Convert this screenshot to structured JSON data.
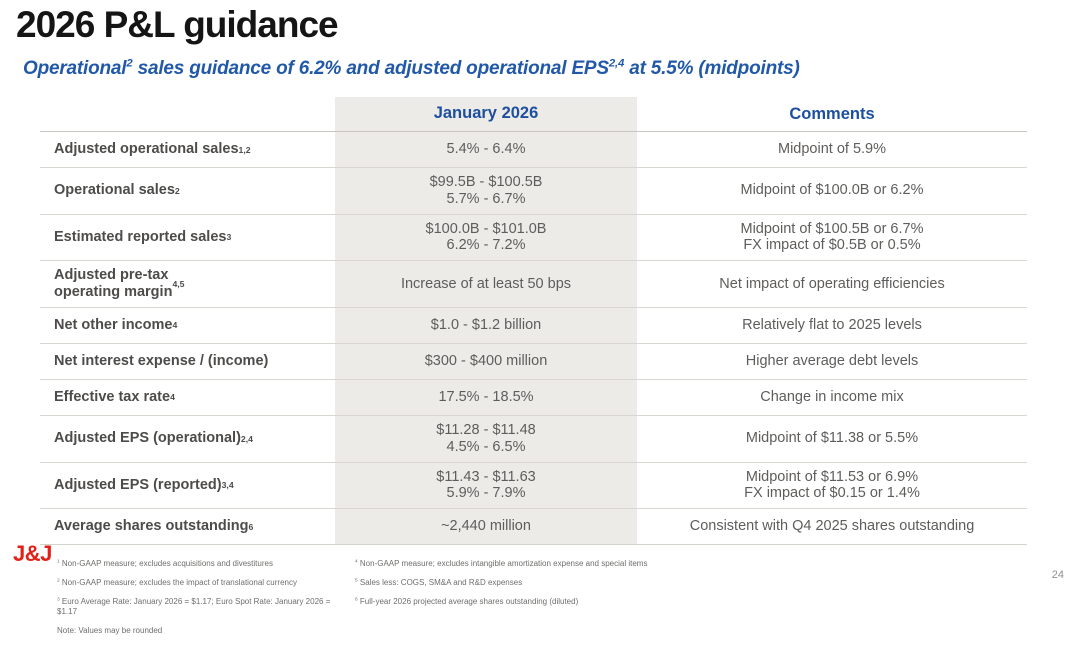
{
  "slide": {
    "title": "2026 P&L guidance",
    "subtitle": "Operational^{2} sales guidance of 6.2% and adjusted operational EPS^{2,4} at 5.5% (midpoints)",
    "logo_text": "J&J",
    "page_number": "24"
  },
  "colors": {
    "heading_blue": "#1c4f9f",
    "subtitle_blue": "#2159a8",
    "logo_red": "#e32119",
    "column_shade": "#edebe7",
    "row_divider": "#d9d6d1"
  },
  "table": {
    "header": {
      "metric": "",
      "january": "January 2026",
      "comments": "Comments"
    },
    "rows": [
      {
        "label": "Adjusted operational sales^{1,2}",
        "value": "5.4% - 6.4%",
        "comment": "Midpoint of 5.9%"
      },
      {
        "label": "Operational sales^{2}",
        "value": "$99.5B - $100.5B\n5.7% - 6.7%",
        "comment": "Midpoint of $100.0B or 6.2%"
      },
      {
        "label": "Estimated reported sales ^{3}",
        "value": "$100.0B - $101.0B\n6.2% - 7.2%",
        "comment": "Midpoint of $100.5B or 6.7%\nFX impact of $0.5B or 0.5%"
      },
      {
        "label": "Adjusted pre-tax\noperating margin^{4,5}",
        "value": "Increase of at least 50 bps",
        "comment": "Net impact of operating efficiencies"
      },
      {
        "label": "Net other income^{4}",
        "value": "$1.0 - $1.2 billion",
        "comment": "Relatively flat to 2025 levels"
      },
      {
        "label": "Net interest expense / (income)",
        "value": "$300 - $400 million",
        "comment": "Higher average debt levels"
      },
      {
        "label": "Effective tax rate^{4}",
        "value": "17.5% - 18.5%",
        "comment": "Change in income mix"
      },
      {
        "label": "Adjusted EPS (operational)^{2,4}",
        "value": "$11.28 - $11.48\n4.5% - 6.5%",
        "comment": "Midpoint of $11.38 or 5.5%"
      },
      {
        "label": "Adjusted EPS (reported)^{3,4}",
        "value": "$11.43 - $11.63\n5.9% - 7.9%",
        "comment": "Midpoint of $11.53 or 6.9%\nFX impact of $0.15 or 1.4%"
      },
      {
        "label": "Average shares outstanding^{6}",
        "value": "~2,440 million",
        "comment": "Consistent with Q4 2025 shares outstanding"
      }
    ]
  },
  "footnotes": {
    "left": [
      "^{1} Non-GAAP measure; excludes acquisitions and divestitures",
      "^{2} Non-GAAP measure; excludes the impact of translational currency",
      "^{3} Euro Average Rate: January 2026 = $1.17; Euro Spot Rate: January 2026 = $1.17",
      "Note: Values may be rounded"
    ],
    "right": [
      "^{4} Non-GAAP measure; excludes intangible amortization expense and special items",
      "^{5} Sales less: COGS, SM&A and R&D expenses",
      "^{6} Full-year 2026 projected average shares outstanding (diluted)"
    ]
  }
}
